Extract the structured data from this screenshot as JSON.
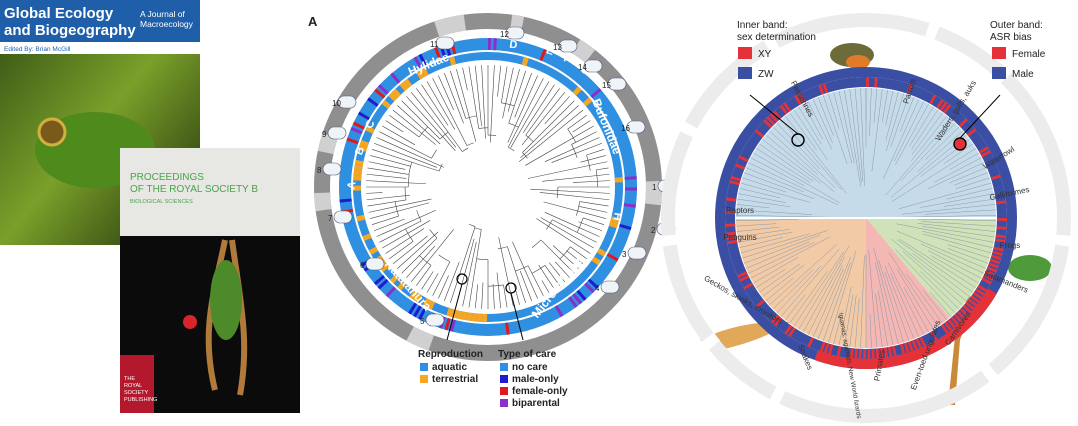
{
  "cover_gec": {
    "title_lines": [
      "Global Ecology",
      "and Biogeography"
    ],
    "subtitle_lines": [
      "A Journal of",
      "Macroecology"
    ],
    "editor": "Edited By: Brian McGill"
  },
  "cover_prsb": {
    "title_lines": [
      "PROCEEDINGS",
      "OF THE ROYAL SOCIETY B"
    ],
    "subtitle": "BIOLOGICAL SCIENCES",
    "publisher_lines": [
      "THE",
      "ROYAL",
      "SOCIETY",
      "PUBLISHING"
    ]
  },
  "figure_a": {
    "panel": "A",
    "clades": [
      "Hylidae",
      "Bufonidae",
      "Microhylidae",
      "Natatanura"
    ],
    "letters": [
      "A",
      "B",
      "C",
      "D",
      "E",
      "F",
      "G",
      "H"
    ],
    "numbers": [
      "1",
      "2",
      "3",
      "4",
      "5",
      "6",
      "7",
      "8",
      "9",
      "10",
      "11",
      "12",
      "13",
      "14",
      "15",
      "16"
    ],
    "legend": {
      "reproduction": {
        "title": "Reproduction",
        "items": [
          "aquatic",
          "terrestrial"
        ]
      },
      "care": {
        "title": "Type of care",
        "items": [
          "no care",
          "male-only",
          "female-only",
          "biparental"
        ]
      }
    }
  },
  "figure_b": {
    "inner_band": {
      "title_lines": [
        "Inner band:",
        "sex determination"
      ],
      "items": [
        "XY",
        "ZW"
      ]
    },
    "outer_band": {
      "title_lines": [
        "Outer band:",
        "ASR bias"
      ],
      "items": [
        "Female",
        "Male"
      ]
    },
    "clades": [
      "Passerines",
      "Parrots",
      "Waders, gulls, auks",
      "Waterfowl",
      "Galliformes",
      "Raptors",
      "Penguins",
      "Frogs",
      "Salamanders",
      "Geckos, skinks, monitors",
      "Snakes",
      "Iguanas, agamids, New World lizards",
      "Primates",
      "Even-toed ungulates",
      "Carnivores"
    ]
  }
}
